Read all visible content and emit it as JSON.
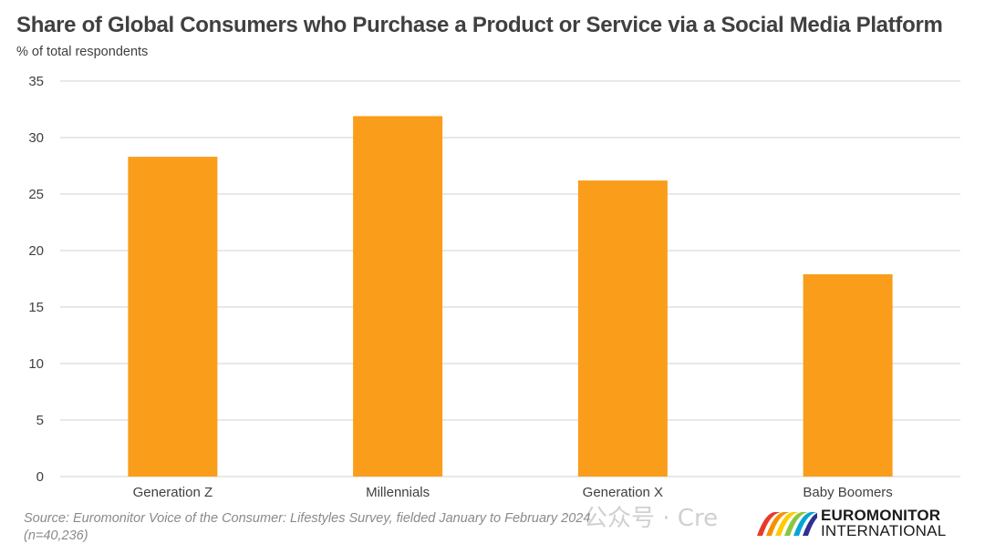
{
  "header": {
    "title": "Share of Global Consumers who Purchase a Product or Service via a Social Media Platform",
    "subtitle": "% of total respondents"
  },
  "footer": {
    "source_line1": "Source: Euromonitor Voice of the Consumer: Lifestyles Survey, fielded January to February 2024",
    "source_line2": "(n=40,236)"
  },
  "logo": {
    "line1": "EUROMONITOR",
    "line2": "INTERNATIONAL",
    "colors": [
      "#e8392b",
      "#f39200",
      "#ffcc00",
      "#8cc63f",
      "#00a6d6",
      "#2e3192"
    ]
  },
  "watermark": {
    "text": "公众号 · Cre"
  },
  "colors": {
    "bar": "#FA9D1A",
    "grid": "#d9d9d9",
    "axis_text": "#404040"
  },
  "chart_data": {
    "type": "bar",
    "categories": [
      "Generation Z",
      "Millennials",
      "Generation X",
      "Baby Boomers"
    ],
    "values": [
      28.3,
      31.9,
      26.2,
      17.9
    ],
    "ylim": [
      0,
      35
    ],
    "yticks": [
      0,
      5,
      10,
      15,
      20,
      25,
      30,
      35
    ],
    "grid": true,
    "legend": "none"
  }
}
